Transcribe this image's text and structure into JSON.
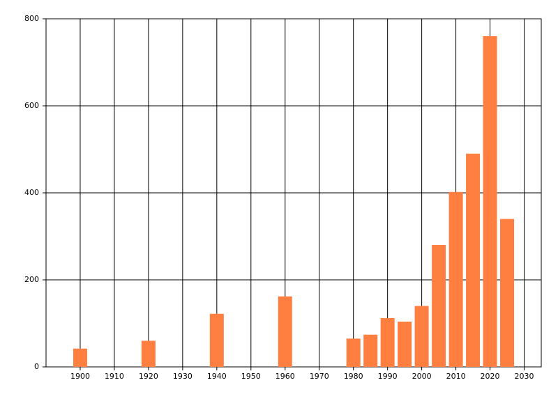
{
  "chart_data": {
    "type": "bar",
    "x": [
      1900,
      1920,
      1940,
      1960,
      1980,
      1985,
      1990,
      1995,
      2000,
      2005,
      2010,
      2015,
      2020,
      2025
    ],
    "values": [
      42,
      60,
      122,
      162,
      65,
      74,
      112,
      104,
      140,
      280,
      402,
      490,
      760,
      340
    ],
    "color": "#ff7f40",
    "xlim": [
      1890,
      2035
    ],
    "xticks": [
      1900,
      1910,
      1920,
      1930,
      1940,
      1950,
      1960,
      1970,
      1980,
      1990,
      2000,
      2010,
      2020,
      2030
    ],
    "ylim": [
      0,
      800
    ],
    "yticks": [
      0,
      200,
      400,
      600,
      800
    ],
    "grid": true
  }
}
